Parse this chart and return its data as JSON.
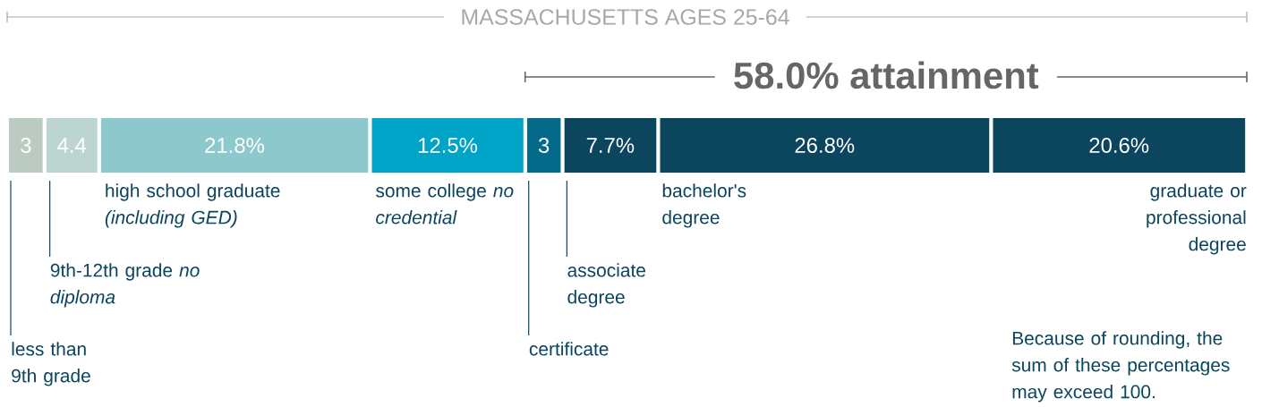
{
  "chart_data": {
    "type": "bar",
    "orientation": "horizontal",
    "stacked": true,
    "title": "MASSACHUSETTS AGES 25-64",
    "categories": [
      null
    ],
    "series": [
      {
        "name": "less than 9th grade",
        "color": "#bccbc2",
        "values": [
          3
        ],
        "value_labels": [
          "3"
        ]
      },
      {
        "name": "9th-12th grade *no diploma*",
        "color": "#bcd5d1",
        "values": [
          4.4
        ],
        "value_labels": [
          "4.4"
        ]
      },
      {
        "name": "high school graduate *(including GED)*",
        "color": "#8dc9cc",
        "values": [
          21.8
        ],
        "value_labels": [
          "21.8%"
        ]
      },
      {
        "name": "some college *no credential*",
        "color": "#00a4c6",
        "values": [
          12.5
        ],
        "value_labels": [
          "12.5%"
        ]
      },
      {
        "name": "certificate",
        "color": "#056a8a",
        "values": [
          3
        ],
        "value_labels": [
          "3"
        ]
      },
      {
        "name": "associate degree",
        "color": "#0b455e",
        "values": [
          7.7
        ],
        "value_labels": [
          "7.7%"
        ]
      },
      {
        "name": "bachelor's degree",
        "color": "#0b455e",
        "values": [
          26.8
        ],
        "value_labels": [
          "26.8%"
        ]
      },
      {
        "name": "graduate or professional degree",
        "color": "#0b455e",
        "values": [
          20.6
        ],
        "value_labels": [
          "20.6%"
        ]
      }
    ],
    "annotations": [
      "58.0% attainment",
      "Because of rounding, the sum of these percentages may exceed 100."
    ]
  }
}
